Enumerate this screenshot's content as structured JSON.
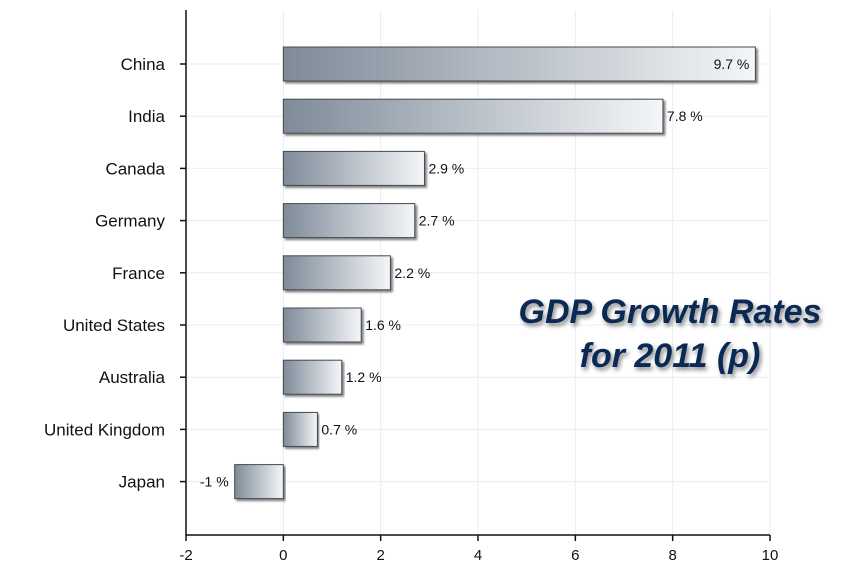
{
  "chart_data": {
    "type": "bar",
    "orientation": "horizontal",
    "title_lines": [
      "GDP Growth Rates",
      "for 2011 (p)"
    ],
    "categories": [
      "China",
      "India",
      "Canada",
      "Germany",
      "France",
      "United States",
      "Australia",
      "United Kingdom",
      "Japan"
    ],
    "values": [
      9.7,
      7.8,
      2.9,
      2.7,
      2.2,
      1.6,
      1.2,
      0.7,
      -1
    ],
    "data_labels": [
      "9.7 %",
      "7.8 %",
      "2.9 %",
      "2.7 %",
      "2.2 %",
      "1.6 %",
      "1.2 %",
      "0.7 %",
      "-1 %"
    ],
    "xlim": [
      -2,
      10
    ],
    "xticks": [
      -2,
      0,
      2,
      4,
      6,
      8,
      10
    ],
    "grid": true,
    "colors": {
      "bar_dark": "#7f8b99",
      "bar_light": "#f4f6f8",
      "bar_edge": "#444a52",
      "grid": "#e9edf2"
    }
  }
}
